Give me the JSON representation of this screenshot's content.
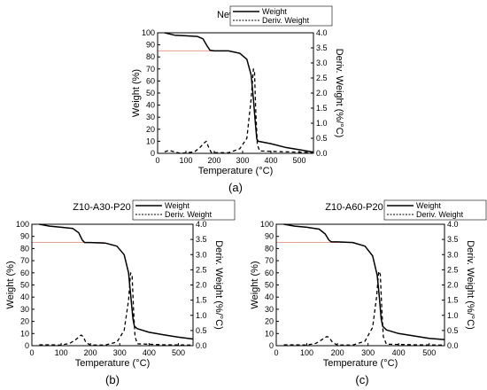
{
  "charts": [
    {
      "panel_label": "(a)",
      "chart_data": {
        "type": "line",
        "title": "New pressboard",
        "xlabel": "Temperature (°C)",
        "ylabel": "Weight (%)",
        "y2label": "Deriv. Weight (%/°C)",
        "xlim": [
          0,
          550
        ],
        "ylim": [
          0,
          100
        ],
        "y2lim": [
          0,
          4.0
        ],
        "xticks": [
          "0",
          "100",
          "200",
          "300",
          "400",
          "500"
        ],
        "yticks": [
          "0",
          "10",
          "20",
          "30",
          "40",
          "50",
          "60",
          "70",
          "80",
          "90",
          "100"
        ],
        "y2ticks": [
          "0.0",
          "0.5",
          "1.0",
          "1.5",
          "2.0",
          "2.5",
          "3.0",
          "3.5",
          "4.0"
        ],
        "legend": [
          "Weight",
          "Deriv. Weight"
        ],
        "legend_position": "top-right",
        "reference_line_y": 85,
        "reference_line_color": "#e8a090",
        "series": [
          {
            "name": "Weight",
            "axis": "left",
            "style": "solid",
            "points": [
              [
                25,
                100
              ],
              [
                60,
                98
              ],
              [
                100,
                97.5
              ],
              [
                140,
                97
              ],
              [
                160,
                95
              ],
              [
                175,
                89
              ],
              [
                185,
                85.5
              ],
              [
                200,
                85
              ],
              [
                250,
                85
              ],
              [
                290,
                83
              ],
              [
                315,
                78
              ],
              [
                330,
                65
              ],
              [
                338,
                45
              ],
              [
                345,
                25
              ],
              [
                350,
                12
              ],
              [
                355,
                10
              ],
              [
                400,
                8
              ],
              [
                450,
                5
              ],
              [
                500,
                3
              ],
              [
                550,
                1
              ]
            ]
          },
          {
            "name": "Deriv. Weight",
            "axis": "right",
            "style": "dashed",
            "points": [
              [
                25,
                0.05
              ],
              [
                40,
                0.1
              ],
              [
                60,
                0.05
              ],
              [
                80,
                0
              ],
              [
                130,
                0.05
              ],
              [
                150,
                0.2
              ],
              [
                165,
                0.35
              ],
              [
                172,
                0.4
              ],
              [
                180,
                0.2
              ],
              [
                190,
                0.02
              ],
              [
                250,
                0.02
              ],
              [
                290,
                0.15
              ],
              [
                315,
                0.5
              ],
              [
                330,
                1.8
              ],
              [
                338,
                2.8
              ],
              [
                342,
                2.75
              ],
              [
                346,
                1.5
              ],
              [
                352,
                0.3
              ],
              [
                360,
                0.08
              ],
              [
                450,
                0.05
              ],
              [
                550,
                0.03
              ]
            ]
          }
        ]
      }
    },
    {
      "panel_label": "(b)",
      "chart_data": {
        "type": "line",
        "title": "Z10-A30-P20",
        "xlabel": "Temperature (°C)",
        "ylabel": "Weight (%)",
        "y2label": "Deriv. Weight (%/°C)",
        "xlim": [
          0,
          550
        ],
        "ylim": [
          0,
          100
        ],
        "y2lim": [
          0,
          4.0
        ],
        "xticks": [
          "0",
          "100",
          "200",
          "300",
          "400",
          "500"
        ],
        "yticks": [
          "0",
          "10",
          "20",
          "30",
          "40",
          "50",
          "60",
          "70",
          "80",
          "90",
          "100"
        ],
        "y2ticks": [
          "0.0",
          "0.5",
          "1.0",
          "1.5",
          "2.0",
          "2.5",
          "3.0",
          "3.5",
          "4.0"
        ],
        "legend": [
          "Weight",
          "Deriv. Weight"
        ],
        "legend_position": "top-right",
        "reference_line_y": 85,
        "reference_line_color": "#e8a090",
        "series": [
          {
            "name": "Weight",
            "axis": "left",
            "style": "solid",
            "points": [
              [
                25,
                100
              ],
              [
                60,
                98.5
              ],
              [
                100,
                97.5
              ],
              [
                140,
                96.5
              ],
              [
                160,
                93
              ],
              [
                172,
                87
              ],
              [
                180,
                85
              ],
              [
                200,
                85
              ],
              [
                250,
                84.5
              ],
              [
                290,
                82
              ],
              [
                315,
                75
              ],
              [
                330,
                60
              ],
              [
                338,
                40
              ],
              [
                345,
                22
              ],
              [
                350,
                16
              ],
              [
                360,
                14
              ],
              [
                400,
                11
              ],
              [
                450,
                9
              ],
              [
                500,
                7
              ],
              [
                550,
                5.5
              ]
            ]
          },
          {
            "name": "Deriv. Weight",
            "axis": "right",
            "style": "dashed",
            "points": [
              [
                25,
                0.03
              ],
              [
                60,
                0.03
              ],
              [
                100,
                0.02
              ],
              [
                130,
                0.08
              ],
              [
                150,
                0.2
              ],
              [
                168,
                0.35
              ],
              [
                175,
                0.3
              ],
              [
                185,
                0.1
              ],
              [
                200,
                0.02
              ],
              [
                250,
                0.02
              ],
              [
                290,
                0.12
              ],
              [
                315,
                0.5
              ],
              [
                330,
                1.5
              ],
              [
                337,
                2.4
              ],
              [
                342,
                2.3
              ],
              [
                347,
                1.2
              ],
              [
                352,
                0.3
              ],
              [
                360,
                0.06
              ],
              [
                450,
                0.03
              ],
              [
                550,
                0.02
              ]
            ]
          }
        ]
      }
    },
    {
      "panel_label": "(c)",
      "chart_data": {
        "type": "line",
        "title": "Z10-A60-P20",
        "xlabel": "Temperature (°C)",
        "ylabel": "Weight (%)",
        "y2label": "Deriv. Weight (%/°C)",
        "xlim": [
          0,
          550
        ],
        "ylim": [
          0,
          100
        ],
        "y2lim": [
          0,
          4.0
        ],
        "xticks": [
          "0",
          "100",
          "200",
          "300",
          "400",
          "500"
        ],
        "yticks": [
          "0",
          "10",
          "20",
          "30",
          "40",
          "50",
          "60",
          "70",
          "80",
          "90",
          "100"
        ],
        "y2ticks": [
          "0.0",
          "0.5",
          "1.0",
          "1.5",
          "2.0",
          "2.5",
          "3.0",
          "3.5",
          "4.0"
        ],
        "legend": [
          "Weight",
          "Deriv. Weight"
        ],
        "legend_position": "top-right",
        "reference_line_y": 85,
        "reference_line_color": "#e8a090",
        "series": [
          {
            "name": "Weight",
            "axis": "left",
            "style": "solid",
            "points": [
              [
                25,
                100
              ],
              [
                60,
                98.5
              ],
              [
                100,
                97.5
              ],
              [
                140,
                96
              ],
              [
                160,
                92
              ],
              [
                172,
                87
              ],
              [
                180,
                85.5
              ],
              [
                200,
                85.5
              ],
              [
                250,
                85
              ],
              [
                290,
                82
              ],
              [
                315,
                74
              ],
              [
                330,
                58
              ],
              [
                337,
                40
              ],
              [
                343,
                22
              ],
              [
                348,
                16
              ],
              [
                360,
                13
              ],
              [
                400,
                10
              ],
              [
                450,
                8
              ],
              [
                500,
                6
              ],
              [
                550,
                5
              ]
            ]
          },
          {
            "name": "Deriv. Weight",
            "axis": "right",
            "style": "dashed",
            "points": [
              [
                25,
                0.03
              ],
              [
                60,
                0.03
              ],
              [
                100,
                0.02
              ],
              [
                130,
                0.08
              ],
              [
                150,
                0.2
              ],
              [
                165,
                0.3
              ],
              [
                172,
                0.28
              ],
              [
                185,
                0.1
              ],
              [
                200,
                0.02
              ],
              [
                250,
                0.02
              ],
              [
                290,
                0.15
              ],
              [
                315,
                0.6
              ],
              [
                328,
                1.6
              ],
              [
                335,
                2.45
              ],
              [
                340,
                2.35
              ],
              [
                345,
                1.2
              ],
              [
                350,
                0.3
              ],
              [
                360,
                0.05
              ],
              [
                450,
                0.03
              ],
              [
                550,
                0.02
              ]
            ]
          }
        ]
      }
    }
  ]
}
